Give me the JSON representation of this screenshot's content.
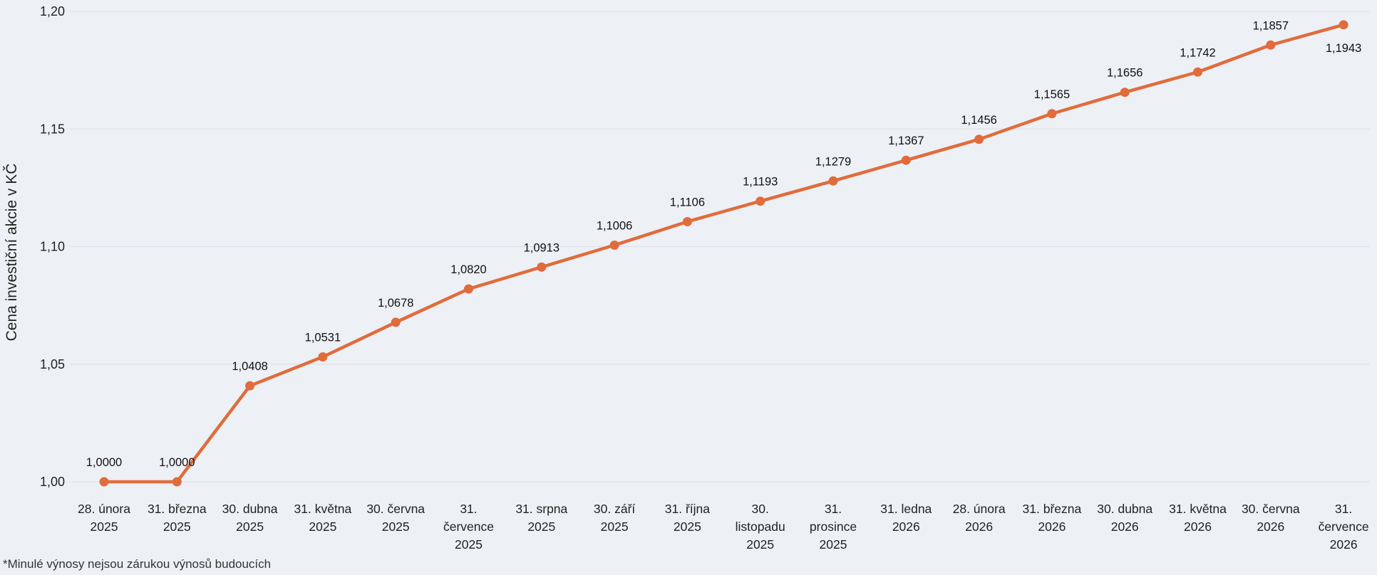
{
  "chart_data": {
    "type": "line",
    "ylabel": "Cena investiční akcie v KČ",
    "ylim": [
      1.0,
      1.2
    ],
    "yticks": [
      "1,00",
      "1,05",
      "1,10",
      "1,15",
      "1,20"
    ],
    "grid": true,
    "legend": "none",
    "categories": [
      [
        "28. února",
        "2025"
      ],
      [
        "31. března",
        "2025"
      ],
      [
        "30. dubna",
        "2025"
      ],
      [
        "31. května",
        "2025"
      ],
      [
        "30. června",
        "2025"
      ],
      [
        "31.",
        "července",
        "2025"
      ],
      [
        "31. srpna",
        "2025"
      ],
      [
        "30. září",
        "2025"
      ],
      [
        "31. října",
        "2025"
      ],
      [
        "30.",
        "listopadu",
        "2025"
      ],
      [
        "31.",
        "prosince",
        "2025"
      ],
      [
        "31. ledna",
        "2026"
      ],
      [
        "28. února",
        "2026"
      ],
      [
        "31. března",
        "2026"
      ],
      [
        "30. dubna",
        "2026"
      ],
      [
        "31. května",
        "2026"
      ],
      [
        "30. června",
        "2026"
      ],
      [
        "31.",
        "července",
        "2026"
      ]
    ],
    "series": [
      {
        "values": [
          1.0,
          1.0,
          1.0408,
          1.0531,
          1.0678,
          1.082,
          1.0913,
          1.1006,
          1.1106,
          1.1193,
          1.1279,
          1.1367,
          1.1456,
          1.1565,
          1.1656,
          1.1742,
          1.1857,
          1.1943
        ],
        "labels": [
          "1,0000",
          "1,0000",
          "1,0408",
          "1,0531",
          "1,0678",
          "1,0820",
          "1,0913",
          "1,1006",
          "1,1106",
          "1,1193",
          "1,1279",
          "1,1367",
          "1,1456",
          "1,1565",
          "1,1656",
          "1,1742",
          "1,1857",
          "1,1943"
        ],
        "color": "#e06c3c"
      }
    ],
    "gridColor": "#dcdfe5"
  },
  "footnote": "*Minulé výnosy nejsou zárukou výnosů budoucích"
}
